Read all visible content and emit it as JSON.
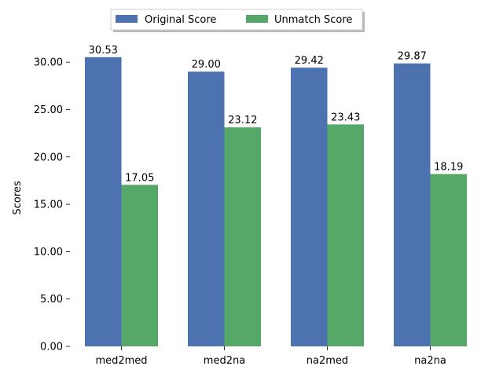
{
  "chart_data": {
    "type": "bar",
    "categories": [
      "med2med",
      "med2na",
      "na2med",
      "na2na"
    ],
    "series": [
      {
        "name": "Original Score",
        "values": [
          30.53,
          29.0,
          29.42,
          29.87
        ],
        "color": "#4c72b0"
      },
      {
        "name": "Unmatch Score",
        "values": [
          17.05,
          23.12,
          23.43,
          18.19
        ],
        "color": "#55a868"
      }
    ],
    "ylabel": "Scores",
    "xlabel": "",
    "ylim": [
      0,
      32.5
    ],
    "yticks": [
      0,
      5,
      10,
      15,
      20,
      25,
      30
    ],
    "ytick_labels": [
      "0.00",
      "5.00",
      "10.00",
      "15.00",
      "20.00",
      "25.00",
      "30.00"
    ],
    "data_labels": [
      [
        "30.53",
        "29.00",
        "29.42",
        "29.87"
      ],
      [
        "17.05",
        "23.12",
        "23.43",
        "18.19"
      ]
    ],
    "legend_position": "top-center",
    "grid": false
  }
}
